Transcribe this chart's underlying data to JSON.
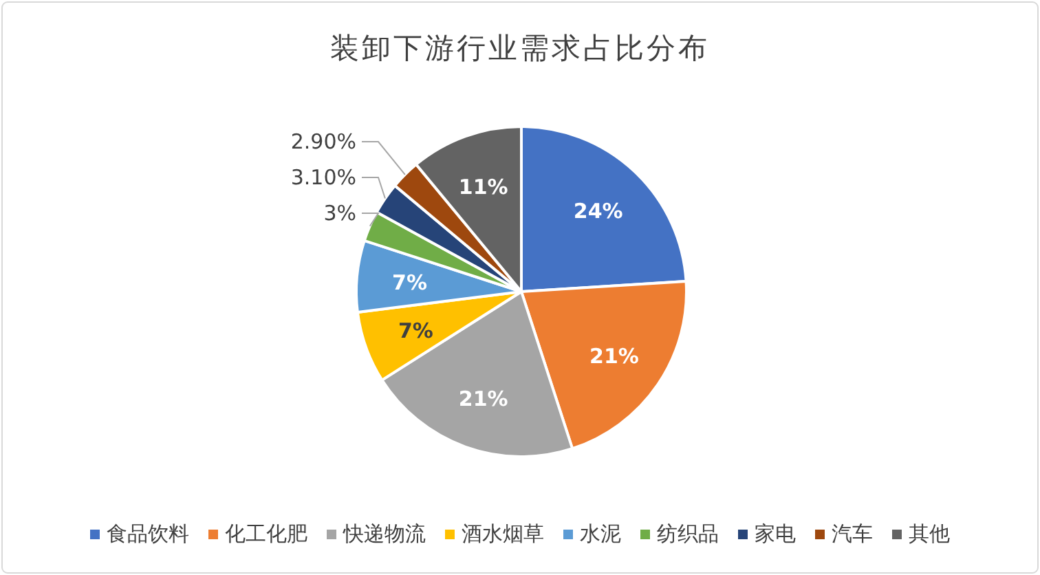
{
  "chart_data": {
    "type": "pie",
    "title": "装卸下游行业需求占比分布",
    "categories": [
      "食品饮料",
      "化工化肥",
      "快递物流",
      "酒水烟草",
      "水泥",
      "纺织品",
      "家电",
      "汽车",
      "其他"
    ],
    "values": [
      24,
      21,
      21,
      7,
      7,
      3,
      3.1,
      2.9,
      11
    ],
    "value_labels": [
      "24%",
      "21%",
      "21%",
      "7%",
      "7%",
      "3%",
      "3.10%",
      "2.90%",
      "11%"
    ],
    "colors": [
      "#4472c4",
      "#ed7d31",
      "#a5a5a5",
      "#ffc000",
      "#5b9bd5",
      "#70ad47",
      "#264478",
      "#9e480e",
      "#636363"
    ],
    "legend": "bottom"
  }
}
